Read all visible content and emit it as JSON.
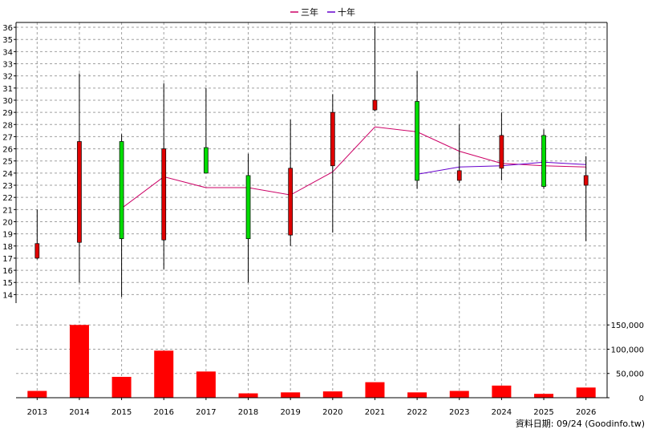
{
  "chart_data": {
    "type": "candlestick",
    "legend": [
      {
        "name": "三年",
        "color": "#cc0066"
      },
      {
        "name": "十年",
        "color": "#6600cc"
      }
    ],
    "legend_position": "top-center",
    "grid": true,
    "years": [
      "2013",
      "2014",
      "2015",
      "2016",
      "2017",
      "2018",
      "2019",
      "2020",
      "2021",
      "2022",
      "2023",
      "2024",
      "2025",
      "2026"
    ],
    "price_axis": {
      "ylim": [
        13.3,
        36.4
      ],
      "ticks": [
        14,
        15,
        16,
        17,
        18,
        19,
        20,
        21,
        22,
        23,
        24,
        25,
        26,
        27,
        28,
        29,
        30,
        31,
        32,
        33,
        34,
        35,
        36
      ],
      "position": "left"
    },
    "volume_axis": {
      "ylim": [
        0,
        195000
      ],
      "ticks": [
        0,
        50000,
        100000,
        150000
      ],
      "tick_labels": [
        "0",
        "50,000",
        "100,000",
        "150,000"
      ],
      "position": "right"
    },
    "candles": [
      {
        "year": "2013",
        "open": 18.2,
        "close": 17.0,
        "high": 21.0,
        "low": 16.9,
        "color": "red"
      },
      {
        "year": "2014",
        "open": 26.6,
        "close": 18.3,
        "high": 32.2,
        "low": 15.0,
        "color": "red"
      },
      {
        "year": "2015",
        "open": 18.6,
        "close": 26.6,
        "high": 27.2,
        "low": 13.8,
        "color": "green"
      },
      {
        "year": "2016",
        "open": 26.0,
        "close": 18.5,
        "high": 31.4,
        "low": 16.1,
        "color": "red"
      },
      {
        "year": "2017",
        "open": 24.0,
        "close": 26.1,
        "high": 31.0,
        "low": 24.0,
        "color": "green"
      },
      {
        "year": "2018",
        "open": 18.6,
        "close": 23.8,
        "high": 25.6,
        "low": 15.0,
        "color": "green"
      },
      {
        "year": "2019",
        "open": 24.4,
        "close": 18.9,
        "high": 28.4,
        "low": 18.0,
        "color": "red"
      },
      {
        "year": "2020",
        "open": 29.0,
        "close": 24.6,
        "high": 30.5,
        "low": 19.1,
        "color": "red"
      },
      {
        "year": "2021",
        "open": 30.0,
        "close": 29.2,
        "high": 36.1,
        "low": 29.1,
        "color": "red"
      },
      {
        "year": "2022",
        "open": 23.4,
        "close": 29.9,
        "high": 32.4,
        "low": 22.7,
        "color": "green"
      },
      {
        "year": "2023",
        "open": 24.2,
        "close": 23.4,
        "high": 28.0,
        "low": 23.2,
        "color": "red"
      },
      {
        "year": "2024",
        "open": 27.1,
        "close": 24.4,
        "high": 29.0,
        "low": 23.4,
        "color": "red"
      },
      {
        "year": "2025",
        "open": 22.9,
        "close": 27.1,
        "high": 27.6,
        "low": 22.7,
        "color": "green"
      },
      {
        "year": "2026",
        "open": 23.8,
        "close": 23.0,
        "high": 25.4,
        "low": 18.4,
        "color": "red"
      }
    ],
    "series": [
      {
        "name": "三年",
        "color": "#cc0066",
        "x": [
          "2015",
          "2016",
          "2017",
          "2018",
          "2019",
          "2020",
          "2021",
          "2022",
          "2023",
          "2024",
          "2025",
          "2026"
        ],
        "values": [
          21.1,
          23.7,
          22.8,
          22.8,
          22.2,
          24.1,
          27.8,
          27.4,
          25.8,
          24.8,
          24.6,
          24.5
        ]
      },
      {
        "name": "十年",
        "color": "#6600cc",
        "x": [
          "2022",
          "2023",
          "2024",
          "2025",
          "2026"
        ],
        "values": [
          23.9,
          24.5,
          24.6,
          24.9,
          24.7
        ]
      }
    ],
    "volume": [
      14000,
      150000,
      43000,
      97000,
      54000,
      9000,
      11000,
      13000,
      32000,
      11000,
      14000,
      25000,
      8000,
      21000
    ],
    "volume_color": "#ff0000",
    "footer": "資料日期: 09/24  (Goodinfo.tw)"
  }
}
